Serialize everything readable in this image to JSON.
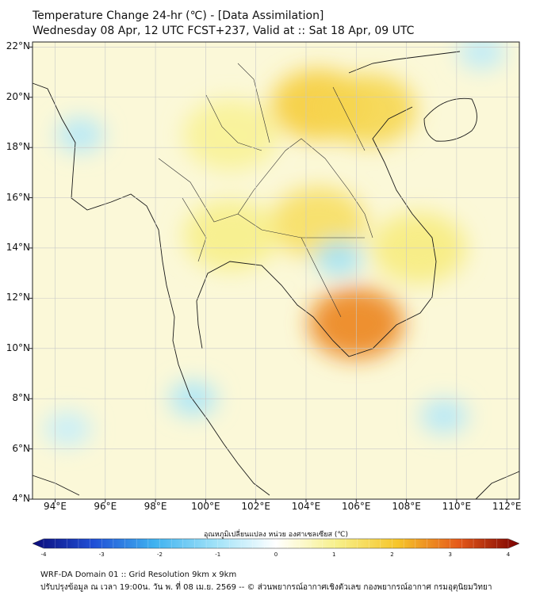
{
  "title": {
    "line1": "Temperature Change 24-hr (℃) - [Data Assimilation]",
    "line2": "Wednesday 08 Apr, 12 UTC FCST+237, Valid at :: Sat 18 Apr, 09 UTC"
  },
  "map": {
    "lat_labels": [
      "22°N",
      "20°N",
      "18°N",
      "16°N",
      "14°N",
      "12°N",
      "10°N",
      "8°N",
      "6°N",
      "4°N"
    ],
    "lon_labels": [
      "94°E",
      "96°E",
      "98°E",
      "100°E",
      "102°E",
      "104°E",
      "106°E",
      "108°E",
      "110°E",
      "112°E"
    ],
    "lat_values": [
      22,
      20,
      18,
      16,
      14,
      12,
      10,
      8,
      6,
      4
    ],
    "lon_values": [
      94,
      96,
      98,
      100,
      102,
      104,
      106,
      108,
      110,
      112
    ],
    "extent": {
      "lon_min": 93.1,
      "lon_max": 112.5,
      "lat_min": 4,
      "lat_max": 22.2
    },
    "warm_spots": [
      {
        "name": "cambodia-south",
        "lon": 106.0,
        "lat": 11.0,
        "value": 2.6
      },
      {
        "name": "laos-north",
        "lon": 104.5,
        "lat": 19.7,
        "value": 1.8
      },
      {
        "name": "gulf-tonkin",
        "lon": 106.5,
        "lat": 19.5,
        "value": 1.6
      },
      {
        "name": "ne-thailand",
        "lon": 104.5,
        "lat": 15.0,
        "value": 1.4
      },
      {
        "name": "vietnam-coast",
        "lon": 108.5,
        "lat": 14.0,
        "value": 1.1
      },
      {
        "name": "central-thailand",
        "lon": 101.0,
        "lat": 14.5,
        "value": 1.0
      },
      {
        "name": "north-thailand",
        "lon": 101.0,
        "lat": 18.5,
        "value": 0.9
      }
    ],
    "cool_spots": [
      {
        "name": "tonle-sap",
        "lon": 105.3,
        "lat": 13.6,
        "value": -1.0
      },
      {
        "name": "andaman-north",
        "lon": 95.0,
        "lat": 18.5,
        "value": -0.8
      },
      {
        "name": "peninsula",
        "lon": 99.5,
        "lat": 8.0,
        "value": -0.9
      },
      {
        "name": "south-china-sea",
        "lon": 109.5,
        "lat": 7.3,
        "value": -0.8
      },
      {
        "name": "andaman-south",
        "lon": 94.5,
        "lat": 6.8,
        "value": -0.6
      },
      {
        "name": "hainan-ne",
        "lon": 111.0,
        "lat": 21.8,
        "value": -0.7
      }
    ]
  },
  "colorbar": {
    "label": "อุณหภูมิเปลี่ยนแปลง หน่วย องศาเซลเซียส (℃)",
    "min": -4,
    "max": 4,
    "ticks": [
      "-4",
      "-3",
      "-2",
      "-1",
      "0",
      "1",
      "2",
      "3",
      "4"
    ],
    "tick_values": [
      -4,
      -3,
      -2,
      -1,
      0,
      1,
      2,
      3,
      4
    ],
    "colors": [
      "#0b0b7a",
      "#1f4fd6",
      "#3fb2f0",
      "#9fe2f8",
      "#ffffff",
      "#f7f08a",
      "#f6c52a",
      "#e55a1a",
      "#7a0000"
    ]
  },
  "footer": {
    "line1": "WRF-DA Domain 01 :: Grid Resolution 9km x 9km",
    "line2": "ปรับปรุงข้อมูล ณ เวลา 19:00น. วัน พ. ที่ 08 เม.ย. 2569 -- © ส่วนพยากรณ์อากาศเชิงตัวเลข กองพยากรณ์อากาศ กรมอุตุนิยมวิทยา"
  }
}
